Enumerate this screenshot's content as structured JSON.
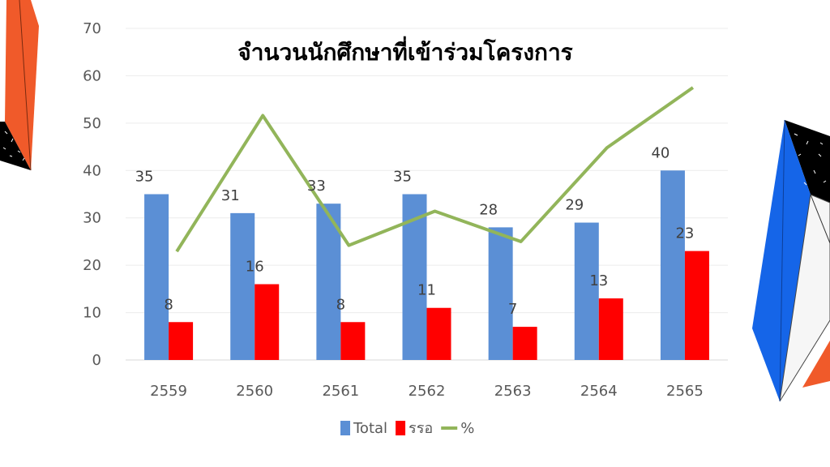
{
  "chart_data": {
    "type": "bar",
    "title": "จำนวนนักศึกษาที่เข้าร่วมโครงการ",
    "xlabel": "",
    "ylabel": "",
    "categories": [
      "2559",
      "2560",
      "2561",
      "2562",
      "2563",
      "2564",
      "2565"
    ],
    "ylim": [
      0,
      70
    ],
    "yticks": [
      "0",
      "10",
      "20",
      "30",
      "40",
      "50",
      "60",
      "70"
    ],
    "grid": true,
    "legend_position": "bottom",
    "series": [
      {
        "name": "Total",
        "type": "bar",
        "color": "#5B8FD5",
        "values": [
          35,
          31,
          33,
          35,
          28,
          29,
          40
        ]
      },
      {
        "name": "รรอ",
        "type": "bar",
        "color": "#FF0000",
        "values": [
          8,
          16,
          8,
          11,
          7,
          13,
          23
        ]
      },
      {
        "name": "%",
        "type": "line",
        "color": "#92B55A",
        "values": [
          22.9,
          51.6,
          24.2,
          31.4,
          25.0,
          44.8,
          57.5
        ]
      }
    ]
  },
  "decor": {
    "blue": "#1565E8",
    "orange": "#F05A2A",
    "black": "#000000"
  }
}
